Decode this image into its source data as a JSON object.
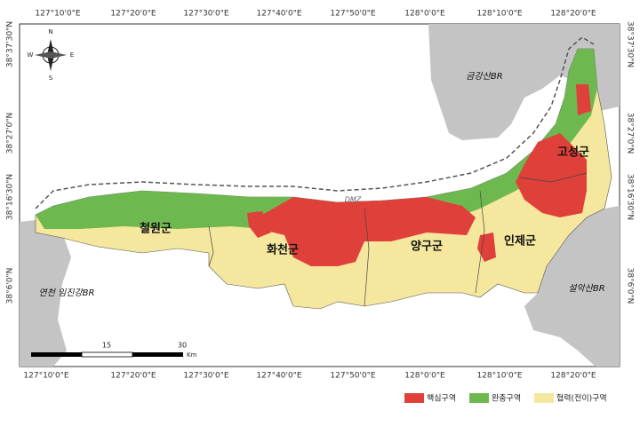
{
  "map": {
    "top_axis_labels": [
      "127°10'0\"E",
      "127°20'0\"E",
      "127°30'0\"E",
      "127°40'0\"E",
      "127°50'0\"E",
      "128°0'0\"E",
      "128°10'0\"E",
      "128°20'0\"E"
    ],
    "bottom_axis_labels": [
      "127°10'0\"E",
      "127°20'0\"E",
      "127°30'0\"E",
      "127°40'0\"E",
      "127°50'0\"E",
      "128°0'0\"E",
      "128°10'0\"E",
      "128°20'0\"E"
    ],
    "left_axis_labels": [
      "38°37'30\"N",
      "38°27'0\"N",
      "38°16'30\"N",
      "38°6'0\"N"
    ],
    "right_axis_labels": [
      "38°37'30\"N",
      "38°27'0\"N",
      "38°16'30\"N",
      "38°6'0\"N"
    ],
    "compass": {
      "n": "N",
      "s": "S",
      "e": "E",
      "w": "W"
    },
    "regions": [
      "철원군",
      "화천군",
      "양구군",
      "인제군",
      "고성군"
    ],
    "reserves": [
      "금강산BR",
      "연천 임진강BR",
      "설악산BR"
    ],
    "dmz_label": "DMZ",
    "scale_bar": {
      "labels": [
        "15",
        "30"
      ],
      "unit": "Km"
    },
    "legend": [
      "핵심구역",
      "완충구역",
      "협력(전이)구역"
    ]
  }
}
